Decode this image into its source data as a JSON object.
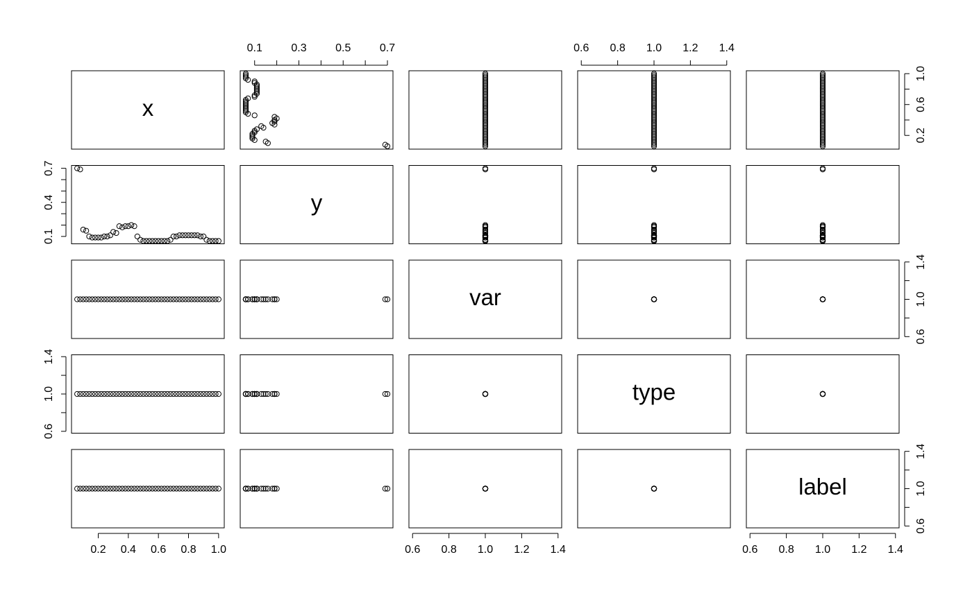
{
  "chart_data": {
    "type": "pairs",
    "color": "#000000",
    "variables": [
      {
        "name": "x",
        "lim": [
          0.0224,
          1.0376
        ],
        "values": [
          0.06,
          0.08,
          0.1,
          0.12,
          0.14,
          0.16,
          0.18,
          0.2,
          0.22,
          0.24,
          0.26,
          0.28,
          0.3,
          0.32,
          0.34,
          0.36,
          0.38,
          0.4,
          0.42,
          0.44,
          0.46,
          0.48,
          0.5,
          0.52,
          0.54,
          0.56,
          0.58,
          0.6,
          0.62,
          0.64,
          0.66,
          0.68,
          0.7,
          0.72,
          0.74,
          0.76,
          0.78,
          0.8,
          0.82,
          0.84,
          0.86,
          0.88,
          0.9,
          0.92,
          0.94,
          0.96,
          0.98,
          1.0
        ]
      },
      {
        "name": "y",
        "lim": [
          0.035,
          0.725
        ],
        "values": [
          0.7,
          0.69,
          0.16,
          0.15,
          0.1,
          0.09,
          0.09,
          0.09,
          0.09,
          0.1,
          0.1,
          0.11,
          0.14,
          0.13,
          0.19,
          0.18,
          0.19,
          0.19,
          0.2,
          0.19,
          0.1,
          0.07,
          0.06,
          0.06,
          0.06,
          0.06,
          0.06,
          0.06,
          0.06,
          0.06,
          0.06,
          0.07,
          0.1,
          0.1,
          0.11,
          0.11,
          0.11,
          0.11,
          0.11,
          0.11,
          0.11,
          0.1,
          0.1,
          0.07,
          0.06,
          0.06,
          0.06,
          0.06
        ]
      },
      {
        "name": "var",
        "lim": [
          0.58,
          1.42
        ],
        "values": [
          1,
          1,
          1,
          1,
          1,
          1,
          1,
          1,
          1,
          1,
          1,
          1,
          1,
          1,
          1,
          1,
          1,
          1,
          1,
          1,
          1,
          1,
          1,
          1,
          1,
          1,
          1,
          1,
          1,
          1,
          1,
          1,
          1,
          1,
          1,
          1,
          1,
          1,
          1,
          1,
          1,
          1,
          1,
          1,
          1,
          1,
          1,
          1
        ]
      },
      {
        "name": "type",
        "lim": [
          0.58,
          1.42
        ],
        "values": [
          1,
          1,
          1,
          1,
          1,
          1,
          1,
          1,
          1,
          1,
          1,
          1,
          1,
          1,
          1,
          1,
          1,
          1,
          1,
          1,
          1,
          1,
          1,
          1,
          1,
          1,
          1,
          1,
          1,
          1,
          1,
          1,
          1,
          1,
          1,
          1,
          1,
          1,
          1,
          1,
          1,
          1,
          1,
          1,
          1,
          1,
          1,
          1
        ]
      },
      {
        "name": "label",
        "lim": [
          0.58,
          1.42
        ],
        "values": [
          1,
          1,
          1,
          1,
          1,
          1,
          1,
          1,
          1,
          1,
          1,
          1,
          1,
          1,
          1,
          1,
          1,
          1,
          1,
          1,
          1,
          1,
          1,
          1,
          1,
          1,
          1,
          1,
          1,
          1,
          1,
          1,
          1,
          1,
          1,
          1,
          1,
          1,
          1,
          1,
          1,
          1,
          1,
          1,
          1,
          1,
          1,
          1
        ]
      }
    ],
    "axes": [
      {
        "variable": 0,
        "side": "bottom",
        "ticks": [
          0.2,
          0.4,
          0.6,
          0.8,
          1.0
        ],
        "tick_labels": [
          0.2,
          0.4,
          0.6,
          0.8,
          {
            "value": 1.0,
            "label": "1.0"
          }
        ]
      },
      {
        "variable": 0,
        "side": "right",
        "ticks": [
          0.2,
          0.4,
          0.6,
          0.8,
          1.0
        ],
        "tick_labels": [
          0.2,
          0.6,
          {
            "value": 1.0,
            "label": "1.0"
          }
        ]
      },
      {
        "variable": 1,
        "side": "top",
        "ticks": [
          0.1,
          0.2,
          0.3,
          0.4,
          0.5,
          0.6,
          0.7
        ],
        "tick_labels": [
          0.1,
          0.3,
          0.5,
          0.7
        ]
      },
      {
        "variable": 1,
        "side": "left",
        "ticks": [
          0.1,
          0.2,
          0.3,
          0.4,
          0.5,
          0.6,
          0.7
        ],
        "tick_labels": [
          0.1,
          0.4,
          0.7
        ]
      },
      {
        "variable": 2,
        "side": "bottom",
        "ticks": [
          0.6,
          0.8,
          1.0,
          1.2,
          1.4
        ],
        "tick_labels": [
          0.6,
          0.8,
          {
            "value": 1.0,
            "label": "1.0"
          },
          1.2,
          1.4
        ]
      },
      {
        "variable": 2,
        "side": "right",
        "ticks": [
          0.6,
          0.8,
          1.0,
          1.2,
          1.4
        ],
        "tick_labels": [
          0.6,
          {
            "value": 1.0,
            "label": "1.0"
          },
          1.4
        ]
      },
      {
        "variable": 3,
        "side": "top",
        "ticks": [
          0.6,
          0.8,
          1.0,
          1.2,
          1.4
        ],
        "tick_labels": [
          0.6,
          0.8,
          {
            "value": 1.0,
            "label": "1.0"
          },
          1.2,
          1.4
        ]
      },
      {
        "variable": 3,
        "side": "left",
        "ticks": [
          0.6,
          0.8,
          1.0,
          1.2,
          1.4
        ],
        "tick_labels": [
          0.6,
          {
            "value": 1.0,
            "label": "1.0"
          },
          1.4
        ]
      },
      {
        "variable": 4,
        "side": "bottom",
        "ticks": [
          0.6,
          0.8,
          1.0,
          1.2,
          1.4
        ],
        "tick_labels": [
          0.6,
          0.8,
          {
            "value": 1.0,
            "label": "1.0"
          },
          1.2,
          1.4
        ]
      },
      {
        "variable": 4,
        "side": "right",
        "ticks": [
          0.6,
          0.8,
          1.0,
          1.2,
          1.4
        ],
        "tick_labels": [
          0.6,
          {
            "value": 1.0,
            "label": "1.0"
          },
          1.4
        ]
      }
    ]
  }
}
